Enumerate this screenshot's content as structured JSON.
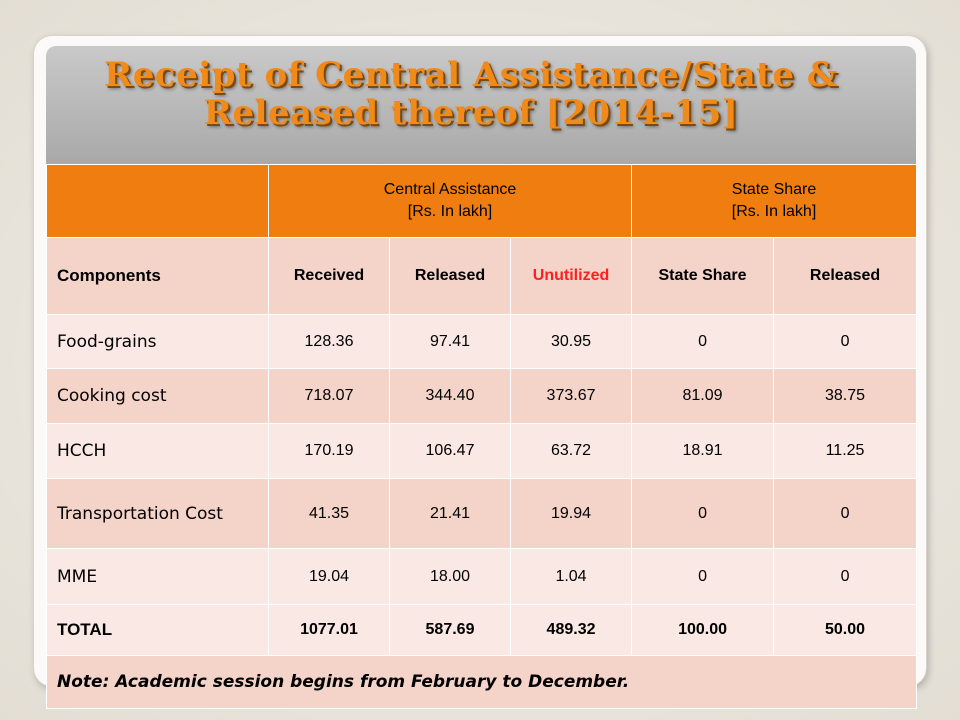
{
  "title": {
    "line1": "Receipt of Central Assistance/State &",
    "line2": "Released thereof [2014-15]"
  },
  "header": {
    "central": {
      "line1": "Central Assistance",
      "line2": "[Rs. In lakh]"
    },
    "state": {
      "line1": "State Share",
      "line2": "[Rs. In lakh]"
    }
  },
  "columns": {
    "components": "Components",
    "received": "Received",
    "released": "Released",
    "unutilized": "Unutilized",
    "state_share": "State Share",
    "state_released": "Released"
  },
  "rows": [
    {
      "label": "Food-grains",
      "received": "128.36",
      "released": "97.41",
      "unutilized": "30.95",
      "state_share": "0",
      "state_released": "0"
    },
    {
      "label": "Cooking cost",
      "received": "718.07",
      "released": "344.40",
      "unutilized": "373.67",
      "state_share": "81.09",
      "state_released": "38.75"
    },
    {
      "label": "HCCH",
      "received": "170.19",
      "released": "106.47",
      "unutilized": "63.72",
      "state_share": "18.91",
      "state_released": "11.25"
    },
    {
      "label": "Transportation Cost",
      "received": "41.35",
      "released": "21.41",
      "unutilized": "19.94",
      "state_share": "0",
      "state_released": "0"
    },
    {
      "label": "MME",
      "received": "19.04",
      "released": "18.00",
      "unutilized": "1.04",
      "state_share": "0",
      "state_released": "0"
    }
  ],
  "total": {
    "label": "TOTAL",
    "received": "1077.01",
    "released": "587.69",
    "unutilized": "489.32",
    "state_share": "100.00",
    "state_released": "50.00"
  },
  "note": "Note: Academic session begins from February to December.",
  "colors": {
    "accent": "#ef7d0f",
    "title": "#f08a1a",
    "unutilized": "#ff1f1f",
    "row_light": "#f9e8e3",
    "row_dark": "#f4d3c8"
  }
}
